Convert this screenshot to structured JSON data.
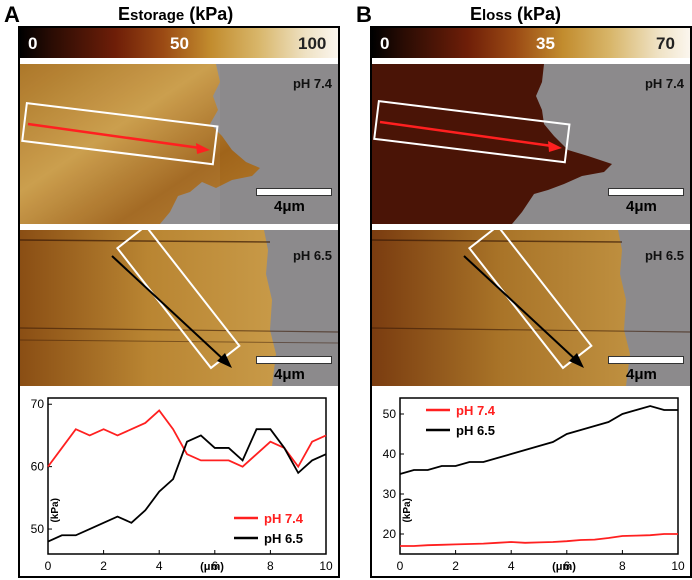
{
  "panels": [
    {
      "letter": "A",
      "title_main": "E",
      "title_sub": "storage",
      "title_unit": " (kPa)",
      "colorbar": {
        "min": "0",
        "mid": "50",
        "max": "100"
      },
      "top_label": "pH 7.4",
      "bottom_label": "pH 6.5",
      "scale_label": "4μm"
    },
    {
      "letter": "B",
      "title_main": "E",
      "title_sub": "loss",
      "title_unit": " (kPa)",
      "colorbar": {
        "min": "0",
        "mid": "35",
        "max": "70"
      },
      "top_label": "pH 7.4",
      "bottom_label": "pH 6.5",
      "scale_label": "4μm"
    }
  ],
  "colors": {
    "red": "#ff2020",
    "black": "#000000",
    "gray": "#8c8a8c"
  },
  "chart_data": [
    {
      "type": "line",
      "xlabel": "(μm)",
      "ylabel": "(kPa)",
      "xlim": [
        0,
        10
      ],
      "ylim": [
        46,
        71
      ],
      "xticks": [
        "0",
        "2",
        "4",
        "6",
        "8",
        "10"
      ],
      "yticks": [
        "50",
        "60",
        "70"
      ],
      "legend_position": "bottom-right",
      "x": [
        0,
        0.5,
        1,
        1.5,
        2,
        2.5,
        3,
        3.5,
        4,
        4.5,
        5,
        5.5,
        6,
        6.5,
        7,
        7.5,
        8,
        8.5,
        9,
        9.5,
        10
      ],
      "series": [
        {
          "name": "pH 7.4",
          "color": "#ff2020",
          "values": [
            60,
            63,
            66,
            65,
            66,
            65,
            66,
            67,
            69,
            66,
            62,
            61,
            61,
            61,
            60,
            62,
            64,
            63,
            60,
            64,
            65
          ]
        },
        {
          "name": "pH 6.5",
          "color": "#000000",
          "values": [
            48,
            49,
            49,
            50,
            51,
            52,
            51,
            53,
            56,
            58,
            64,
            65,
            63,
            63,
            61,
            66,
            66,
            63,
            59,
            61,
            62
          ]
        }
      ]
    },
    {
      "type": "line",
      "xlabel": "(μm)",
      "ylabel": "(kPa)",
      "xlim": [
        0,
        10
      ],
      "ylim": [
        15,
        54
      ],
      "xticks": [
        "0",
        "2",
        "4",
        "6",
        "8",
        "10"
      ],
      "yticks": [
        "20",
        "30",
        "40",
        "50"
      ],
      "legend_position": "top-left",
      "x": [
        0,
        0.5,
        1,
        1.5,
        2,
        2.5,
        3,
        3.5,
        4,
        4.5,
        5,
        5.5,
        6,
        6.5,
        7,
        7.5,
        8,
        8.5,
        9,
        9.5,
        10
      ],
      "series": [
        {
          "name": "pH 7.4",
          "color": "#ff2020",
          "values": [
            17,
            17,
            17.2,
            17.3,
            17.4,
            17.5,
            17.6,
            17.8,
            18,
            17.8,
            17.9,
            18,
            18.2,
            18.5,
            18.6,
            19,
            19.5,
            19.6,
            19.7,
            20,
            20
          ]
        },
        {
          "name": "pH 6.5",
          "color": "#000000",
          "values": [
            35,
            36,
            36,
            37,
            37,
            38,
            38,
            39,
            40,
            41,
            42,
            43,
            45,
            46,
            47,
            48,
            50,
            51,
            52,
            51,
            51
          ]
        }
      ]
    }
  ]
}
